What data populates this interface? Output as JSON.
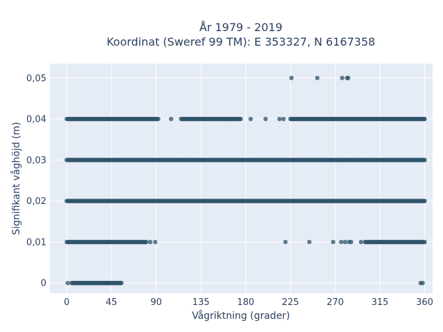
{
  "chart_data": {
    "type": "scatter",
    "title_line1": "År 1979 - 2019",
    "title_line2": "Koordinat (Sweref 99 TM): E 353327, N 6167358",
    "xlabel": "Vågriktning (grader)",
    "ylabel": "Signifikant våghöjd (m)",
    "xlim": [
      -17,
      368
    ],
    "ylim": [
      -0.0025,
      0.0535
    ],
    "x_ticks": [
      0,
      45,
      90,
      135,
      180,
      225,
      270,
      315,
      360
    ],
    "x_tick_labels": [
      "0",
      "45",
      "90",
      "135",
      "180",
      "225",
      "270",
      "315",
      "360"
    ],
    "y_ticks": [
      0,
      0.01,
      0.02,
      0.03,
      0.04,
      0.05
    ],
    "y_tick_labels": [
      "0",
      "0,01",
      "0,02",
      "0,03",
      "0,04",
      "0,05"
    ],
    "grid": true,
    "marker_color": "#2f5469",
    "background": "#e5ecf6",
    "series": [
      {
        "y": 0,
        "x_ranges": [
          [
            5,
            55
          ]
        ],
        "x_points": [
          1,
          356,
          358
        ]
      },
      {
        "y": 0.01,
        "x_ranges": [
          [
            0,
            80
          ],
          [
            300,
            360
          ]
        ],
        "x_points": [
          84,
          89,
          220,
          244,
          268,
          276,
          280,
          284,
          286,
          296
        ]
      },
      {
        "y": 0.02,
        "x_ranges": [
          [
            0,
            360
          ]
        ],
        "x_points": []
      },
      {
        "y": 0.03,
        "x_ranges": [
          [
            0,
            360
          ]
        ],
        "x_points": []
      },
      {
        "y": 0.04,
        "x_ranges": [
          [
            0,
            92
          ],
          [
            115,
            175
          ],
          [
            225,
            360
          ]
        ],
        "x_points": [
          105,
          128,
          155,
          160,
          185,
          200,
          214,
          218
        ]
      },
      {
        "y": 0.05,
        "x_ranges": [],
        "x_points": [
          226,
          252,
          277,
          282,
          283
        ]
      }
    ]
  }
}
